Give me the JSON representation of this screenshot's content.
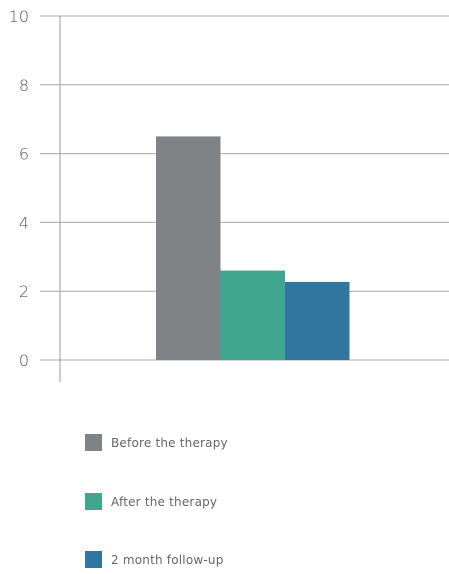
{
  "chart_data": {
    "type": "bar",
    "title": "",
    "xlabel": "",
    "ylabel": "",
    "ylim": [
      0,
      10
    ],
    "yticks": [
      0,
      2,
      4,
      6,
      8,
      10
    ],
    "grid": true,
    "legend_position": "bottom",
    "series": [
      {
        "name": "Before the therapy",
        "value": 6.5,
        "color": "#7f8386"
      },
      {
        "name": "After the therapy",
        "value": 2.6,
        "color": "#40a68f"
      },
      {
        "name": "2 month follow-up",
        "value": 2.27,
        "color": "#30769f"
      }
    ]
  }
}
